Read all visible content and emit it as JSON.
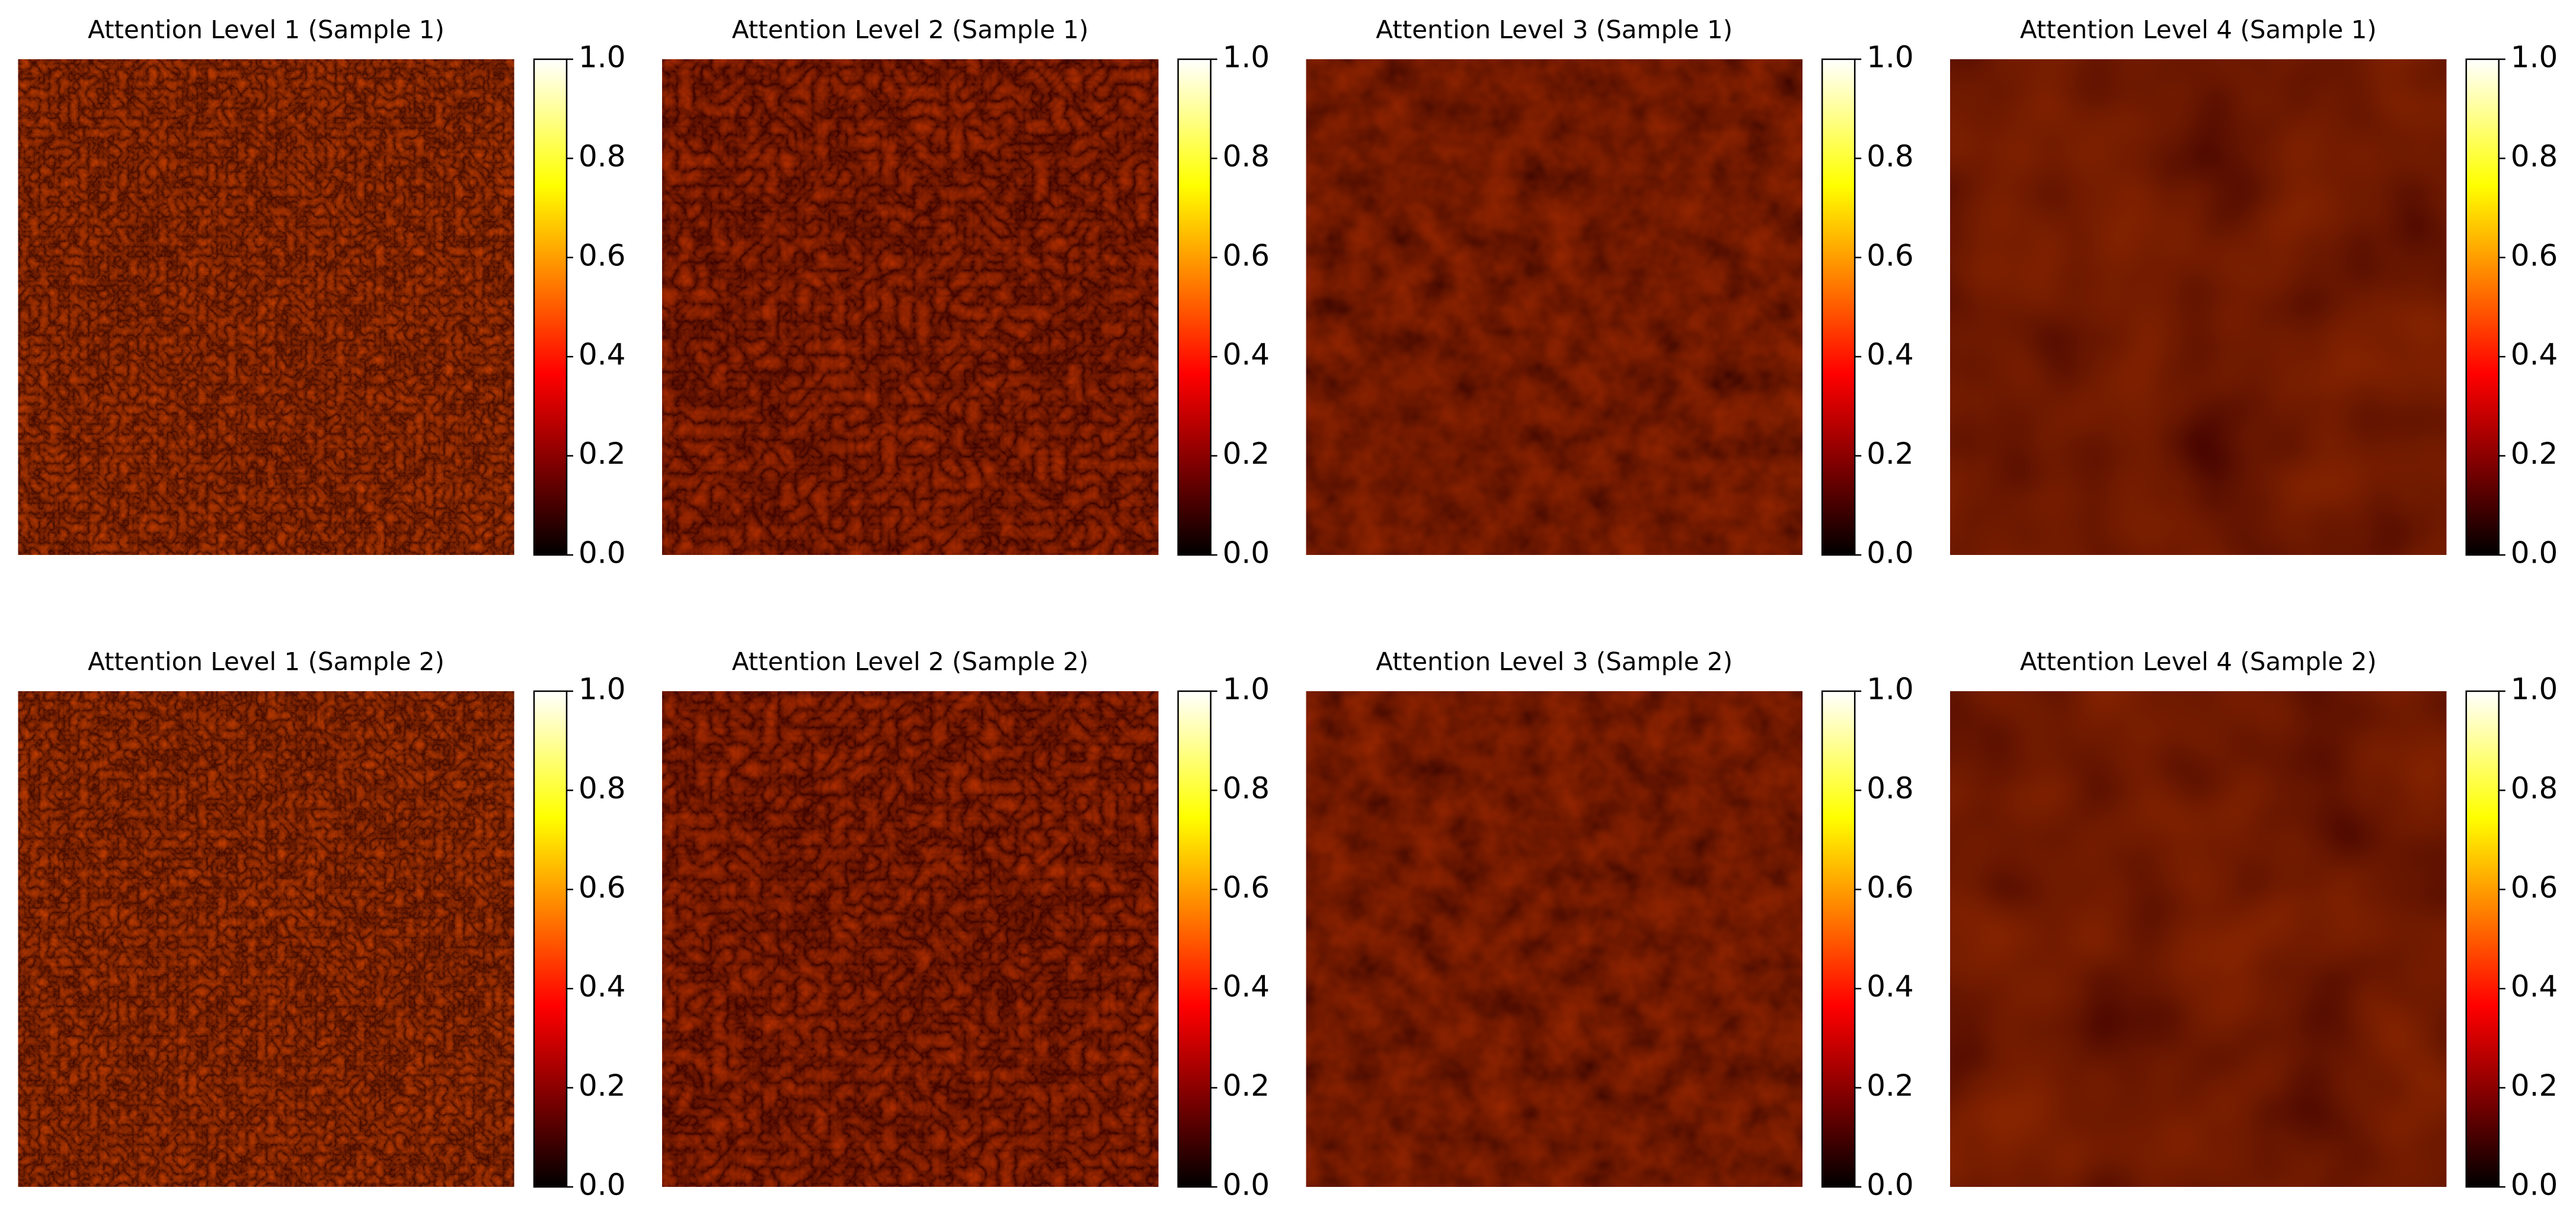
{
  "chart_data": [
    {
      "type": "heatmap",
      "title": "Attention Level 1 (Sample 1)",
      "cmap": "hot",
      "clim": [
        0,
        1
      ],
      "colorbar_ticks": [
        {
          "value": 0,
          "label": "0.0"
        },
        {
          "value": 0.2,
          "label": "0.2"
        },
        {
          "value": 0.4,
          "label": "0.4"
        },
        {
          "value": 0.6,
          "label": "0.6"
        },
        {
          "value": 0.8,
          "label": "0.8"
        },
        {
          "value": 1,
          "label": "1.0"
        }
      ]
    },
    {
      "type": "heatmap",
      "title": "Attention Level 2 (Sample 1)",
      "cmap": "hot",
      "clim": [
        0,
        1
      ],
      "colorbar_ticks": [
        {
          "value": 0,
          "label": "0.0"
        },
        {
          "value": 0.2,
          "label": "0.2"
        },
        {
          "value": 0.4,
          "label": "0.4"
        },
        {
          "value": 0.6,
          "label": "0.6"
        },
        {
          "value": 0.8,
          "label": "0.8"
        },
        {
          "value": 1,
          "label": "1.0"
        }
      ]
    },
    {
      "type": "heatmap",
      "title": "Attention Level 3 (Sample 1)",
      "cmap": "hot",
      "clim": [
        0,
        1
      ],
      "colorbar_ticks": [
        {
          "value": 0,
          "label": "0.0"
        },
        {
          "value": 0.2,
          "label": "0.2"
        },
        {
          "value": 0.4,
          "label": "0.4"
        },
        {
          "value": 0.6,
          "label": "0.6"
        },
        {
          "value": 0.8,
          "label": "0.8"
        },
        {
          "value": 1,
          "label": "1.0"
        }
      ]
    },
    {
      "type": "heatmap",
      "title": "Attention Level 4 (Sample 1)",
      "cmap": "hot",
      "clim": [
        0,
        1
      ],
      "colorbar_ticks": [
        {
          "value": 0,
          "label": "0.0"
        },
        {
          "value": 0.2,
          "label": "0.2"
        },
        {
          "value": 0.4,
          "label": "0.4"
        },
        {
          "value": 0.6,
          "label": "0.6"
        },
        {
          "value": 0.8,
          "label": "0.8"
        },
        {
          "value": 1,
          "label": "1.0"
        }
      ]
    },
    {
      "type": "heatmap",
      "title": "Attention Level 1 (Sample 2)",
      "cmap": "hot",
      "clim": [
        0,
        1
      ],
      "colorbar_ticks": [
        {
          "value": 0,
          "label": "0.0"
        },
        {
          "value": 0.2,
          "label": "0.2"
        },
        {
          "value": 0.4,
          "label": "0.4"
        },
        {
          "value": 0.6,
          "label": "0.6"
        },
        {
          "value": 0.8,
          "label": "0.8"
        },
        {
          "value": 1,
          "label": "1.0"
        }
      ]
    },
    {
      "type": "heatmap",
      "title": "Attention Level 2 (Sample 2)",
      "cmap": "hot",
      "clim": [
        0,
        1
      ],
      "colorbar_ticks": [
        {
          "value": 0,
          "label": "0.0"
        },
        {
          "value": 0.2,
          "label": "0.2"
        },
        {
          "value": 0.4,
          "label": "0.4"
        },
        {
          "value": 0.6,
          "label": "0.6"
        },
        {
          "value": 0.8,
          "label": "0.8"
        },
        {
          "value": 1,
          "label": "1.0"
        }
      ]
    },
    {
      "type": "heatmap",
      "title": "Attention Level 3 (Sample 2)",
      "cmap": "hot",
      "clim": [
        0,
        1
      ],
      "colorbar_ticks": [
        {
          "value": 0,
          "label": "0.0"
        },
        {
          "value": 0.2,
          "label": "0.2"
        },
        {
          "value": 0.4,
          "label": "0.4"
        },
        {
          "value": 0.6,
          "label": "0.6"
        },
        {
          "value": 0.8,
          "label": "0.8"
        },
        {
          "value": 1,
          "label": "1.0"
        }
      ]
    },
    {
      "type": "heatmap",
      "title": "Attention Level 4 (Sample 2)",
      "cmap": "hot",
      "clim": [
        0,
        1
      ],
      "colorbar_ticks": [
        {
          "value": 0,
          "label": "0.0"
        },
        {
          "value": 0.2,
          "label": "0.2"
        },
        {
          "value": 0.4,
          "label": "0.4"
        },
        {
          "value": 0.6,
          "label": "0.6"
        },
        {
          "value": 0.8,
          "label": "0.8"
        },
        {
          "value": 1,
          "label": "1.0"
        }
      ]
    }
  ]
}
